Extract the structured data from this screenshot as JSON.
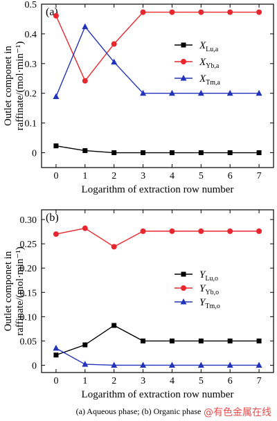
{
  "chart_data": [
    {
      "panel": "(a)",
      "type": "line",
      "xlabel": "Logarithm of extraction row number",
      "ylabel": [
        "Outlet componet in",
        "raffinate/(mol·min⁻¹)"
      ],
      "x": [
        0,
        1,
        2,
        3,
        4,
        5,
        6,
        7
      ],
      "xticks": [
        "0",
        "1",
        "2",
        "3",
        "4",
        "5",
        "6",
        "7"
      ],
      "ylim": [
        -0.05,
        0.5
      ],
      "yticks": [
        "0",
        "0.1",
        "0.2",
        "0.3",
        "0.4",
        "0.5"
      ],
      "legend_position": "right",
      "series": [
        {
          "name": "X",
          "sub": "Lu,a",
          "color": "#000000",
          "marker": "square",
          "values": [
            0.023,
            0.007,
            0.0,
            0.0,
            0.0,
            0.0,
            0.0,
            0.0
          ]
        },
        {
          "name": "X",
          "sub": "Yb,a",
          "color": "#e8262d",
          "marker": "circle",
          "values": [
            0.461,
            0.242,
            0.366,
            0.473,
            0.473,
            0.473,
            0.473,
            0.473
          ]
        },
        {
          "name": "X",
          "sub": "Tm,a",
          "color": "#2233bb",
          "marker": "triangle",
          "values": [
            0.189,
            0.424,
            0.305,
            0.2,
            0.2,
            0.2,
            0.2,
            0.2
          ]
        }
      ]
    },
    {
      "panel": "(b)",
      "type": "line",
      "xlabel": "Logarithm of extraction row number",
      "ylabel": [
        "Outlet componet in",
        "raffinate/(mol·min⁻¹)"
      ],
      "x": [
        0,
        1,
        2,
        3,
        4,
        5,
        6,
        7
      ],
      "xticks": [
        "0",
        "1",
        "2",
        "3",
        "4",
        "5",
        "6",
        "7"
      ],
      "ylim": [
        -0.015,
        0.32
      ],
      "yticks": [
        "0",
        "0.05",
        "0.10",
        "0.15",
        "0.20",
        "0.25",
        "0.30"
      ],
      "legend_position": "right",
      "series": [
        {
          "name": "Y",
          "sub": "Lu,o",
          "color": "#000000",
          "marker": "square",
          "values": [
            0.021,
            0.042,
            0.082,
            0.05,
            0.05,
            0.05,
            0.05,
            0.05
          ]
        },
        {
          "name": "Y",
          "sub": "Yb,o",
          "color": "#e8262d",
          "marker": "circle",
          "values": [
            0.27,
            0.282,
            0.244,
            0.276,
            0.276,
            0.276,
            0.276,
            0.276
          ]
        },
        {
          "name": "Y",
          "sub": "Tm,o",
          "color": "#2233bb",
          "marker": "triangle",
          "values": [
            0.035,
            0.002,
            0.0,
            0.0,
            0.0,
            0.0,
            0.0,
            0.0
          ]
        }
      ]
    }
  ],
  "caption": "(a) Aqueous phase;  (b) Organic phase",
  "watermark": "@有色金属在线"
}
